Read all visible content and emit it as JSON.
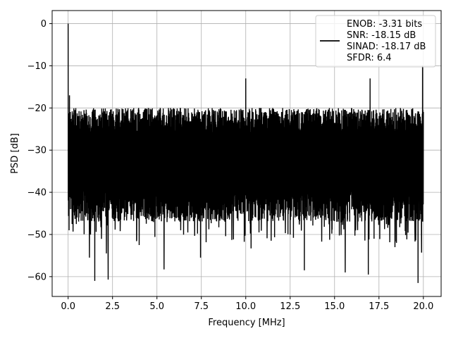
{
  "chart_data": {
    "type": "line",
    "title": "",
    "xlabel": "Frequency [MHz]",
    "ylabel": "PSD [dB]",
    "xlim": [
      -0.9,
      21.0
    ],
    "ylim": [
      -64.7,
      3.1
    ],
    "grid": true,
    "x_ticks": [
      0.0,
      2.5,
      5.0,
      7.5,
      10.0,
      12.5,
      15.0,
      17.5,
      20.0
    ],
    "x_tick_labels": [
      "0.0",
      "2.5",
      "5.0",
      "7.5",
      "10.0",
      "12.5",
      "15.0",
      "17.5",
      "20.0"
    ],
    "y_ticks": [
      0,
      -10,
      -20,
      -30,
      -40,
      -50,
      -60
    ],
    "y_tick_labels": [
      "0",
      "−10",
      "−20",
      "−30",
      "−40",
      "−50",
      "−60"
    ],
    "legend": {
      "placement": "top-right",
      "entries": [
        "ENOB: -3.31 bits",
        "SNR: -18.15 dB",
        "SINAD: -18.17 dB",
        "SFDR: 6.4"
      ]
    },
    "series": [
      {
        "color": "#000000",
        "x_range": [
          0.0,
          20.0
        ],
        "noise_floor_upper_dB": -20,
        "noise_floor_lower_dB": -43,
        "peaks": [
          {
            "x": 0.0,
            "y": 0.0
          },
          {
            "x": 19.95,
            "y": -10.0
          },
          {
            "x": 17.0,
            "y": -13.0
          },
          {
            "x": 10.0,
            "y": -13.0
          },
          {
            "x": 0.08,
            "y": -17.0
          }
        ],
        "troughs": [
          {
            "x": 1.5,
            "y": -61.0
          },
          {
            "x": 2.25,
            "y": -60.7
          },
          {
            "x": 19.7,
            "y": -61.5
          },
          {
            "x": 16.9,
            "y": -59.5
          },
          {
            "x": 15.6,
            "y": -59.0
          },
          {
            "x": 13.3,
            "y": -58.5
          },
          {
            "x": 5.4,
            "y": -58.3
          },
          {
            "x": 7.45,
            "y": -55.5
          },
          {
            "x": 10.3,
            "y": -53.3
          },
          {
            "x": 1.2,
            "y": -55.5
          },
          {
            "x": 2.15,
            "y": -54.5
          },
          {
            "x": 19.9,
            "y": -54.3
          },
          {
            "x": 18.4,
            "y": -53.0
          },
          {
            "x": 4.0,
            "y": -52.5
          },
          {
            "x": 0.05,
            "y": -49.0
          }
        ]
      }
    ]
  }
}
